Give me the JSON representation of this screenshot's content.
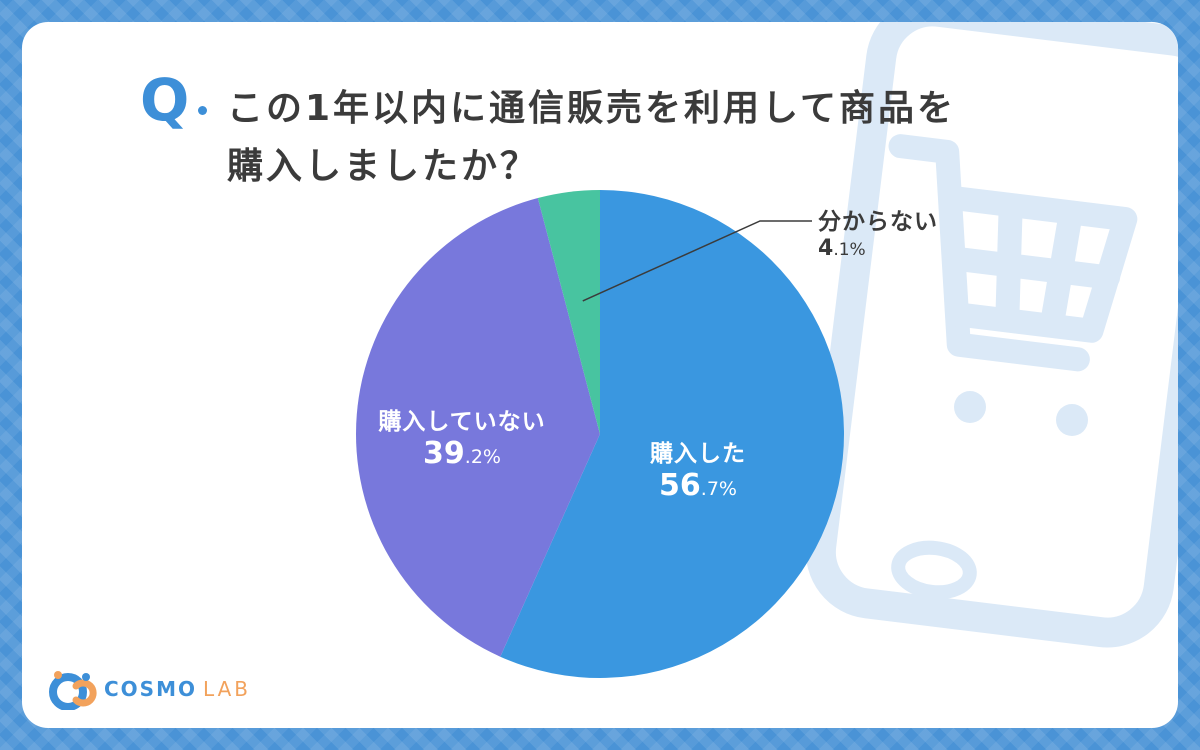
{
  "question": {
    "mark": "Q",
    "line1": "この1年以内に通信販売を利用して商品を",
    "line2": "購入しましたか？"
  },
  "chart_data": {
    "type": "pie",
    "title": "Q. この1年以内に通信販売を利用して商品を購入しましたか？",
    "start_angle": "12 o'clock",
    "direction": "clockwise",
    "slices": [
      {
        "label": "購入した",
        "value": 56.7,
        "pct_int": "56",
        "pct_dec": ".7%",
        "color": "#3a97e0"
      },
      {
        "label": "購入していない",
        "value": 39.2,
        "pct_int": "39",
        "pct_dec": ".2%",
        "color": "#7878dc"
      },
      {
        "label": "分からない",
        "value": 4.1,
        "pct_int": "4",
        "pct_dec": ".1%",
        "color": "#48c4a0"
      }
    ]
  },
  "logo": {
    "brand": "COSMO",
    "suffix": "LAB",
    "icon": "cosmo-lab-logo-icon",
    "brand_color": "#3d8fd8",
    "suffix_color": "#f2a25c"
  },
  "decoration": {
    "background_icon": "smartphone-shopping-cart-icon"
  }
}
